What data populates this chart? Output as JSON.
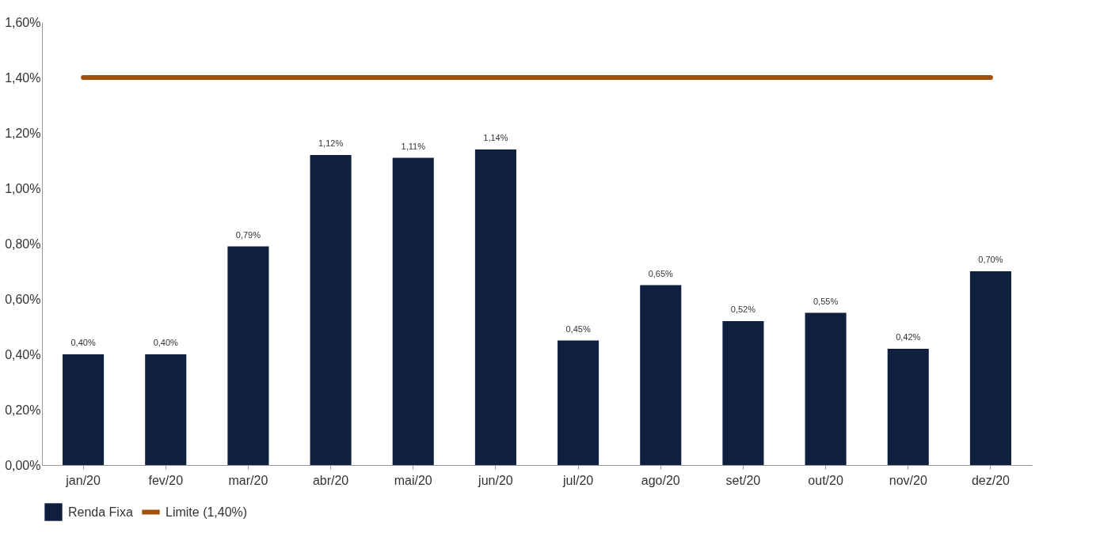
{
  "chart_data": {
    "type": "bar",
    "categories": [
      "jan/20",
      "fev/20",
      "mar/20",
      "abr/20",
      "mai/20",
      "jun/20",
      "jul/20",
      "ago/20",
      "set/20",
      "out/20",
      "nov/20",
      "dez/20"
    ],
    "series": [
      {
        "name": "Renda Fixa",
        "color": "#0f1f3d",
        "values": [
          0.4,
          0.4,
          0.79,
          1.12,
          1.11,
          1.14,
          0.45,
          0.65,
          0.52,
          0.55,
          0.42,
          0.7
        ],
        "value_labels": [
          "0,40%",
          "0,40%",
          "0,79%",
          "1,12%",
          "1,11%",
          "1,14%",
          "0,45%",
          "0,65%",
          "0,52%",
          "0,55%",
          "0,42%",
          "0,70%"
        ]
      },
      {
        "name": "Limite (1,40%)",
        "type": "line",
        "color": "#a0500f",
        "values": [
          1.4,
          1.4,
          1.4,
          1.4,
          1.4,
          1.4,
          1.4,
          1.4,
          1.4,
          1.4,
          1.4,
          1.4
        ]
      }
    ],
    "ylim": [
      0,
      1.6
    ],
    "yticks": [
      {
        "value": 0,
        "label": "0,00%"
      },
      {
        "value": 0.2,
        "label": "0,20%"
      },
      {
        "value": 0.4,
        "label": "0,40%"
      },
      {
        "value": 0.6,
        "label": "0,60%"
      },
      {
        "value": 0.8,
        "label": "0,80%"
      },
      {
        "value": 1.0,
        "label": "1,00%"
      },
      {
        "value": 1.2,
        "label": "1,20%"
      },
      {
        "value": 1.4,
        "label": "1,40%"
      },
      {
        "value": 1.6,
        "label": "1,60%"
      }
    ],
    "grid": false,
    "legend": "bottom"
  }
}
